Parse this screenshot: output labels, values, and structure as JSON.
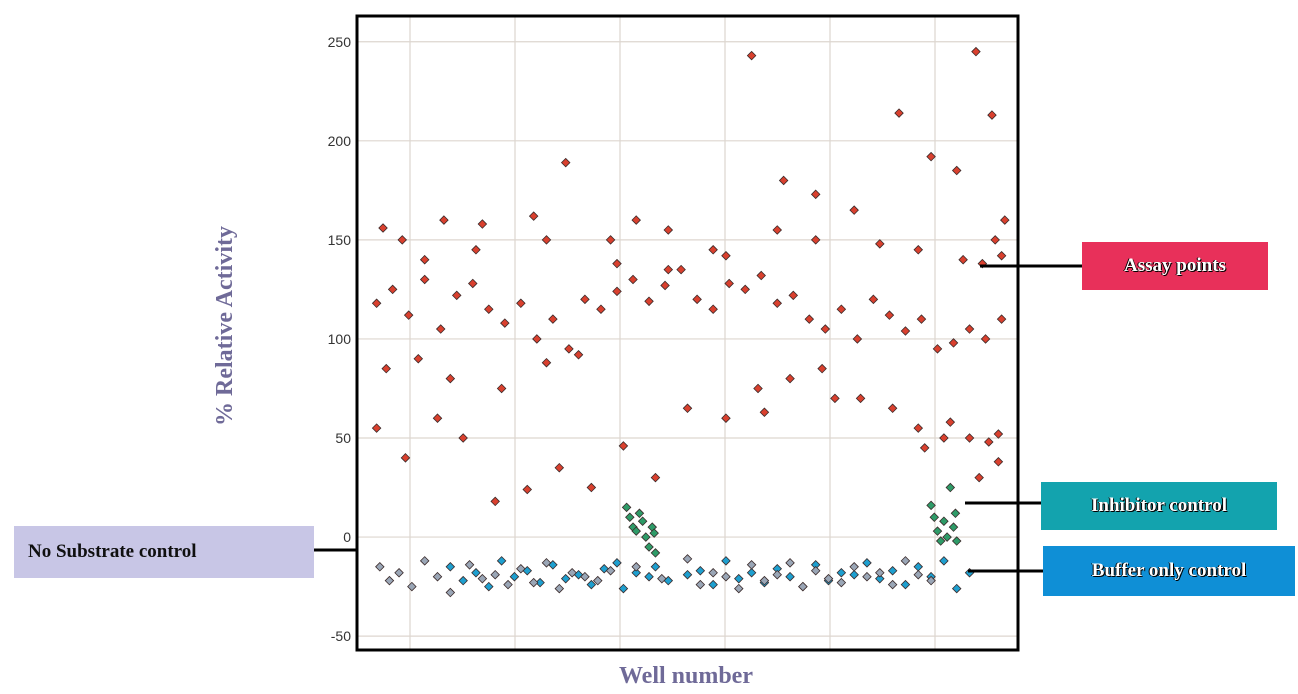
{
  "chart_data": {
    "type": "scatter",
    "xlabel": "Well number",
    "ylabel": "% Relative Activity",
    "ylim": [
      -57,
      263
    ],
    "yticks": [
      -50,
      0,
      50,
      100,
      150,
      200,
      250
    ],
    "xlim": [
      0,
      1000
    ],
    "xtick_labels": [],
    "grid": true,
    "series": [
      {
        "name": "Assay points",
        "color": "#d9402e",
        "description_note": "",
        "x": [
          15,
          40,
          65,
          90,
          115,
          140,
          165,
          190,
          215,
          240,
          265,
          290,
          315,
          340,
          365,
          390,
          415,
          440,
          465,
          490,
          515,
          540,
          565,
          590,
          615,
          640,
          665,
          690,
          715,
          740,
          765,
          790,
          815,
          840,
          865,
          890,
          915,
          940,
          965,
          990,
          25,
          55,
          120,
          180,
          260,
          310,
          380,
          420,
          470,
          540,
          600,
          650,
          700,
          760,
          830,
          880,
          920,
          950,
          975,
          995,
          620,
          730,
          870,
          900,
          955,
          985,
          15,
          60,
          110,
          150,
          200,
          250,
          300,
          350,
          400,
          450,
          500,
          560,
          610,
          660,
          710,
          770,
          820,
          860,
          910,
          940,
          970,
          985,
          30,
          80,
          130,
          210,
          280,
          330,
          90,
          170,
          280,
          390,
          470,
          560,
          640,
          700,
          800,
          860,
          930,
          960,
          980,
          990
        ],
        "y": [
          118,
          125,
          112,
          130,
          105,
          122,
          128,
          115,
          108,
          118,
          100,
          110,
          95,
          120,
          115,
          124,
          130,
          119,
          127,
          135,
          120,
          115,
          128,
          125,
          132,
          118,
          122,
          110,
          105,
          115,
          100,
          120,
          112,
          104,
          110,
          95,
          98,
          105,
          100,
          110,
          156,
          150,
          160,
          158,
          162,
          189,
          150,
          160,
          155,
          145,
          243,
          180,
          173,
          165,
          214,
          192,
          185,
          245,
          213,
          160,
          63,
          70,
          45,
          50,
          30,
          38,
          55,
          40,
          60,
          50,
          18,
          24,
          35,
          25,
          46,
          30,
          65,
          60,
          75,
          80,
          85,
          70,
          65,
          55,
          58,
          50,
          48,
          52,
          85,
          90,
          80,
          75,
          88,
          92,
          140,
          145,
          150,
          138,
          135,
          142,
          155,
          150,
          148,
          145,
          140,
          138,
          150,
          142
        ]
      },
      {
        "name": "Inhibitor control",
        "color": "#2e9b68",
        "x": [
          405,
          410,
          415,
          420,
          425,
          430,
          435,
          440,
          445,
          448,
          450,
          880,
          885,
          890,
          895,
          900,
          905,
          910,
          915,
          918,
          920
        ],
        "y": [
          15,
          10,
          5,
          3,
          12,
          8,
          0,
          -5,
          5,
          2,
          -8,
          16,
          10,
          3,
          -2,
          8,
          0,
          25,
          5,
          12,
          -2
        ]
      },
      {
        "name": "Buffer only control",
        "color": "#1e9fcf",
        "x": [
          130,
          150,
          170,
          190,
          210,
          230,
          250,
          270,
          290,
          310,
          330,
          350,
          370,
          390,
          400,
          420,
          440,
          450,
          470,
          500,
          520,
          540,
          560,
          580,
          600,
          620,
          640,
          660,
          680,
          700,
          720,
          740,
          760,
          780,
          800,
          820,
          840,
          860,
          880,
          900,
          920,
          940
        ],
        "y": [
          -15,
          -22,
          -18,
          -25,
          -12,
          -20,
          -17,
          -23,
          -14,
          -21,
          -19,
          -24,
          -16,
          -13,
          -26,
          -18,
          -20,
          -15,
          -22,
          -19,
          -17,
          -24,
          -12,
          -21,
          -18,
          -23,
          -16,
          -20,
          -25,
          -14,
          -22,
          -18,
          -19,
          -13,
          -21,
          -17,
          -24,
          -15,
          -20,
          -12,
          -26,
          -18
        ]
      },
      {
        "name": "No Substrate control",
        "color": "#9aa6b6",
        "x": [
          20,
          35,
          50,
          70,
          90,
          110,
          130,
          160,
          180,
          200,
          220,
          240,
          260,
          280,
          300,
          320,
          340,
          360,
          380,
          420,
          460,
          500,
          520,
          540,
          560,
          580,
          600,
          620,
          640,
          660,
          680,
          700,
          720,
          740,
          760,
          780,
          800,
          820,
          840,
          860,
          880
        ],
        "y": [
          -15,
          -22,
          -18,
          -25,
          -12,
          -20,
          -28,
          -14,
          -21,
          -19,
          -24,
          -16,
          -23,
          -13,
          -26,
          -18,
          -20,
          -22,
          -17,
          -15,
          -21,
          -11,
          -24,
          -18,
          -20,
          -26,
          -14,
          -22,
          -19,
          -13,
          -25,
          -17,
          -21,
          -23,
          -15,
          -20,
          -18,
          -24,
          -12,
          -19,
          -22
        ]
      }
    ]
  },
  "callouts": {
    "assay": "Assay points",
    "inhibitor": "Inhibitor control",
    "buffer": "Buffer only control",
    "no_substrate": "No Substrate control"
  }
}
